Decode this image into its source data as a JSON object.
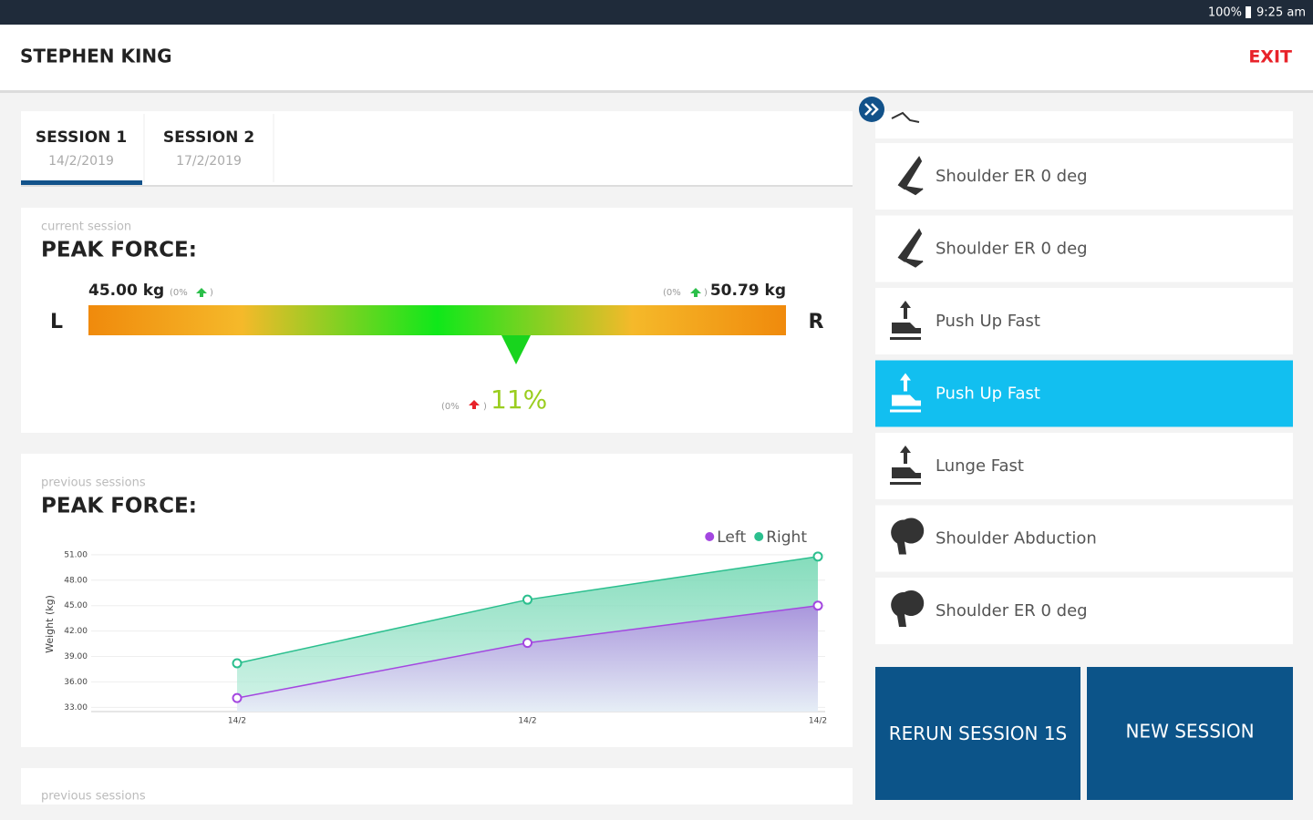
{
  "status_bar": {
    "battery": "100%",
    "time": "9:25 am"
  },
  "header": {
    "user": "STEPHEN KING",
    "exit": "EXIT"
  },
  "tabs": [
    {
      "title": "SESSION 1",
      "date": "14/2/2019"
    },
    {
      "title": "SESSION 2",
      "date": "17/2/2019"
    }
  ],
  "current": {
    "caption": "current session",
    "title": "PEAK FORCE:",
    "side_left": "L",
    "side_right": "R",
    "left_value": "45.00 kg",
    "left_change": {
      "open": "(0%",
      "close": ")"
    },
    "right_change": {
      "open": "(0%",
      "close": ")"
    },
    "right_value": "50.79 kg",
    "diff_change": {
      "open": "(0%",
      "close": ")"
    },
    "diff": "11%"
  },
  "chart_data": {
    "type": "area",
    "caption": "previous sessions",
    "title": "PEAK FORCE:",
    "ylabel": "Weight (kg)",
    "categories": [
      "14/2",
      "14/2",
      "14/2"
    ],
    "series": [
      {
        "name": "Left",
        "color": "#a347e0",
        "values": [
          34.1,
          40.6,
          45.0
        ]
      },
      {
        "name": "Right",
        "color": "#2bbf8e",
        "values": [
          38.2,
          45.7,
          50.79
        ]
      }
    ],
    "ylim": [
      32.5,
      51.2
    ],
    "yticks": [
      {
        "value": 33,
        "label": "33.00"
      },
      {
        "value": 36,
        "label": "36.00"
      },
      {
        "value": 39,
        "label": "39.00"
      },
      {
        "value": 42,
        "label": "42.00"
      },
      {
        "value": 45,
        "label": "45.00"
      },
      {
        "value": 48,
        "label": "48.00"
      },
      {
        "value": 51,
        "label": "51.00"
      }
    ],
    "legend": "top-right"
  },
  "next_caption": "previous sessions",
  "exercises": [
    {
      "name": "Shoulder ER 0 deg",
      "icon": "band"
    },
    {
      "name": "Shoulder ER 0 deg",
      "icon": "band"
    },
    {
      "name": "Push Up Fast",
      "icon": "plate"
    },
    {
      "name": "Push Up Fast",
      "icon": "plate",
      "selected": true
    },
    {
      "name": "Lunge Fast",
      "icon": "plate"
    },
    {
      "name": "Shoulder Abduction",
      "icon": "head"
    },
    {
      "name": "Shoulder ER 0 deg",
      "icon": "head"
    }
  ],
  "buttons": [
    "RERUN SESSION 1S",
    "NEW SESSION"
  ]
}
